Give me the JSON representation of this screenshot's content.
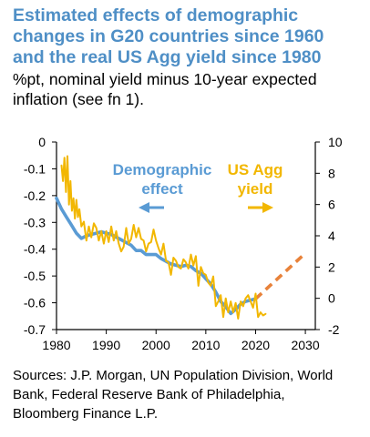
{
  "header": {
    "title_lines": [
      "Estimated effects of demographic",
      "changes in G20 countries since 1960",
      "and the real US Agg yield since 1980"
    ],
    "subtitle_lines": [
      "%pt, nominal yield minus 10-year expected",
      "inflation (see fn 1)."
    ]
  },
  "footer": {
    "source_lines": [
      "Sources: J.P. Morgan, UN Population Division, World",
      "Bank, Federal Reserve Bank of Philadelphia,",
      "Bloomberg Finance L.P."
    ]
  },
  "colors": {
    "demographic": "#5a9bd4",
    "yield": "#f2b700",
    "projection": "#e8823a",
    "axis": "#000000"
  },
  "chart_data": {
    "type": "line",
    "x_ticks": [
      1980,
      1990,
      2000,
      2010,
      2020,
      2030
    ],
    "xlim": [
      1980,
      2032
    ],
    "left_axis": {
      "ticks": [
        0,
        -0.1,
        -0.2,
        -0.3,
        -0.4,
        -0.5,
        -0.6,
        -0.7
      ],
      "ylim": [
        -0.7,
        0
      ]
    },
    "right_axis": {
      "ticks": [
        10,
        8,
        6,
        4,
        2,
        0,
        -2
      ],
      "ylim": [
        -2,
        10
      ]
    },
    "grid": false,
    "annotations": [
      {
        "lines": [
          "Demographic",
          "effect"
        ],
        "color": "#5a9bd4",
        "arrow": "left"
      },
      {
        "lines": [
          "US Agg",
          "yield"
        ],
        "color": "#f2b700",
        "arrow": "right"
      }
    ],
    "series": [
      {
        "axis": "left",
        "color": "#5a9bd4",
        "style": "solid",
        "x": [
          1980,
          1981,
          1982,
          1983,
          1984,
          1985,
          1986,
          1987,
          1988,
          1989,
          1990,
          1991,
          1992,
          1993,
          1994,
          1995,
          1996,
          1997,
          1998,
          1999,
          2000,
          2001,
          2002,
          2003,
          2004,
          2005,
          2006,
          2007,
          2008,
          2009,
          2010,
          2011,
          2012,
          2013,
          2014,
          2015,
          2016,
          2017,
          2018,
          2019,
          2020
        ],
        "y": [
          -0.21,
          -0.25,
          -0.28,
          -0.31,
          -0.34,
          -0.36,
          -0.35,
          -0.345,
          -0.34,
          -0.335,
          -0.34,
          -0.345,
          -0.355,
          -0.365,
          -0.375,
          -0.385,
          -0.405,
          -0.405,
          -0.42,
          -0.42,
          -0.42,
          -0.435,
          -0.445,
          -0.455,
          -0.46,
          -0.465,
          -0.46,
          -0.465,
          -0.48,
          -0.49,
          -0.51,
          -0.53,
          -0.56,
          -0.595,
          -0.615,
          -0.64,
          -0.625,
          -0.605,
          -0.595,
          -0.59,
          -0.585
        ]
      },
      {
        "axis": "right",
        "color": "#f2b700",
        "style": "solid",
        "x": [
          1981.0,
          1981.3,
          1981.6,
          1981.9,
          1982.2,
          1982.5,
          1982.8,
          1983.1,
          1983.4,
          1983.7,
          1984.0,
          1984.3,
          1984.6,
          1985.0,
          1985.5,
          1986.0,
          1986.5,
          1987.0,
          1987.5,
          1988.0,
          1988.5,
          1989.0,
          1989.5,
          1990.0,
          1990.5,
          1991.0,
          1991.5,
          1992.0,
          1992.5,
          1993.0,
          1993.5,
          1994.0,
          1994.5,
          1995.0,
          1995.5,
          1996.0,
          1996.5,
          1997.0,
          1997.5,
          1998.0,
          1998.5,
          1999.0,
          1999.5,
          2000.0,
          2000.5,
          2001.0,
          2001.5,
          2002.0,
          2002.5,
          2003.0,
          2003.5,
          2004.0,
          2004.5,
          2005.0,
          2005.5,
          2006.0,
          2006.5,
          2007.0,
          2007.5,
          2008.0,
          2008.5,
          2009.0,
          2009.5,
          2010.0,
          2010.5,
          2011.0,
          2011.5,
          2012.0,
          2012.5,
          2013.0,
          2013.5,
          2014.0,
          2014.5,
          2015.0,
          2015.5,
          2016.0,
          2016.5,
          2017.0,
          2017.5,
          2018.0,
          2018.5,
          2019.0,
          2019.5,
          2020.0,
          2020.5,
          2021.0,
          2021.5,
          2022.0
        ],
        "y": [
          8.5,
          7.5,
          9.0,
          6.8,
          9.1,
          6.0,
          7.5,
          5.6,
          6.4,
          5.1,
          6.3,
          5.2,
          5.7,
          4.6,
          4.9,
          3.7,
          4.6,
          3.9,
          4.8,
          4.5,
          3.7,
          4.3,
          3.5,
          4.3,
          3.6,
          4.6,
          3.7,
          4.3,
          3.5,
          3.0,
          3.3,
          4.5,
          3.5,
          3.8,
          4.7,
          3.9,
          4.5,
          3.8,
          3.7,
          3.0,
          3.5,
          3.6,
          4.4,
          3.7,
          3.2,
          2.8,
          3.5,
          2.4,
          2.3,
          1.5,
          2.6,
          2.4,
          2.0,
          1.9,
          2.5,
          2.3,
          1.9,
          2.8,
          2.1,
          2.7,
          0.8,
          2.0,
          1.6,
          1.5,
          1.0,
          0.8,
          1.4,
          -0.5,
          -0.2,
          0.2,
          -1.2,
          0.0,
          -0.9,
          -0.2,
          -0.9,
          -0.3,
          -1.3,
          -0.2,
          -0.5,
          0.0,
          0.2,
          -0.2,
          -0.6,
          0.3,
          -1.2,
          -0.9,
          -1.1,
          -1.0
        ]
      },
      {
        "axis": "left",
        "color": "#e8823a",
        "style": "dashed",
        "x": [
          2020,
          2030
        ],
        "y": [
          -0.585,
          -0.415
        ]
      }
    ]
  }
}
